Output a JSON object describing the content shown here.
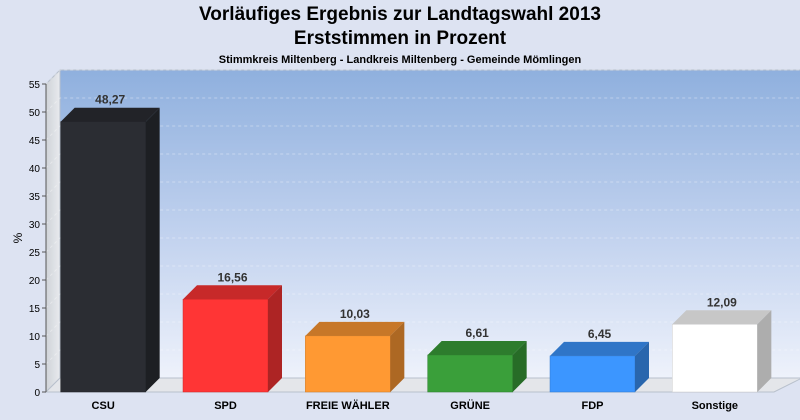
{
  "title": "Vorläufiges Ergebnis zur Landtagswahl 2013",
  "subtitle": "Erststimmen in Prozent",
  "subsubtitle": "Stimmkreis Miltenberg - Landkreis Miltenberg - Gemeinde Mömlingen",
  "chart_data": {
    "type": "bar",
    "categories": [
      "CSU",
      "SPD",
      "FREIE WÄHLER",
      "GRÜNE",
      "FDP",
      "Sonstige"
    ],
    "values": [
      48.27,
      16.56,
      10.03,
      6.61,
      6.45,
      12.09
    ],
    "value_labels": [
      "48,27",
      "16,56",
      "10,03",
      "6,61",
      "6,45",
      "12,09"
    ],
    "colors": [
      "#2b2d33",
      "#ff3535",
      "#ff9933",
      "#3a9f3a",
      "#3c96ff",
      "#ffffff"
    ],
    "ylabel": "%",
    "ylim": [
      0,
      55
    ],
    "yticks": [
      0,
      5,
      10,
      15,
      20,
      25,
      30,
      35,
      40,
      45,
      50,
      55
    ],
    "grid": true,
    "legend": "none",
    "style": "3d"
  }
}
